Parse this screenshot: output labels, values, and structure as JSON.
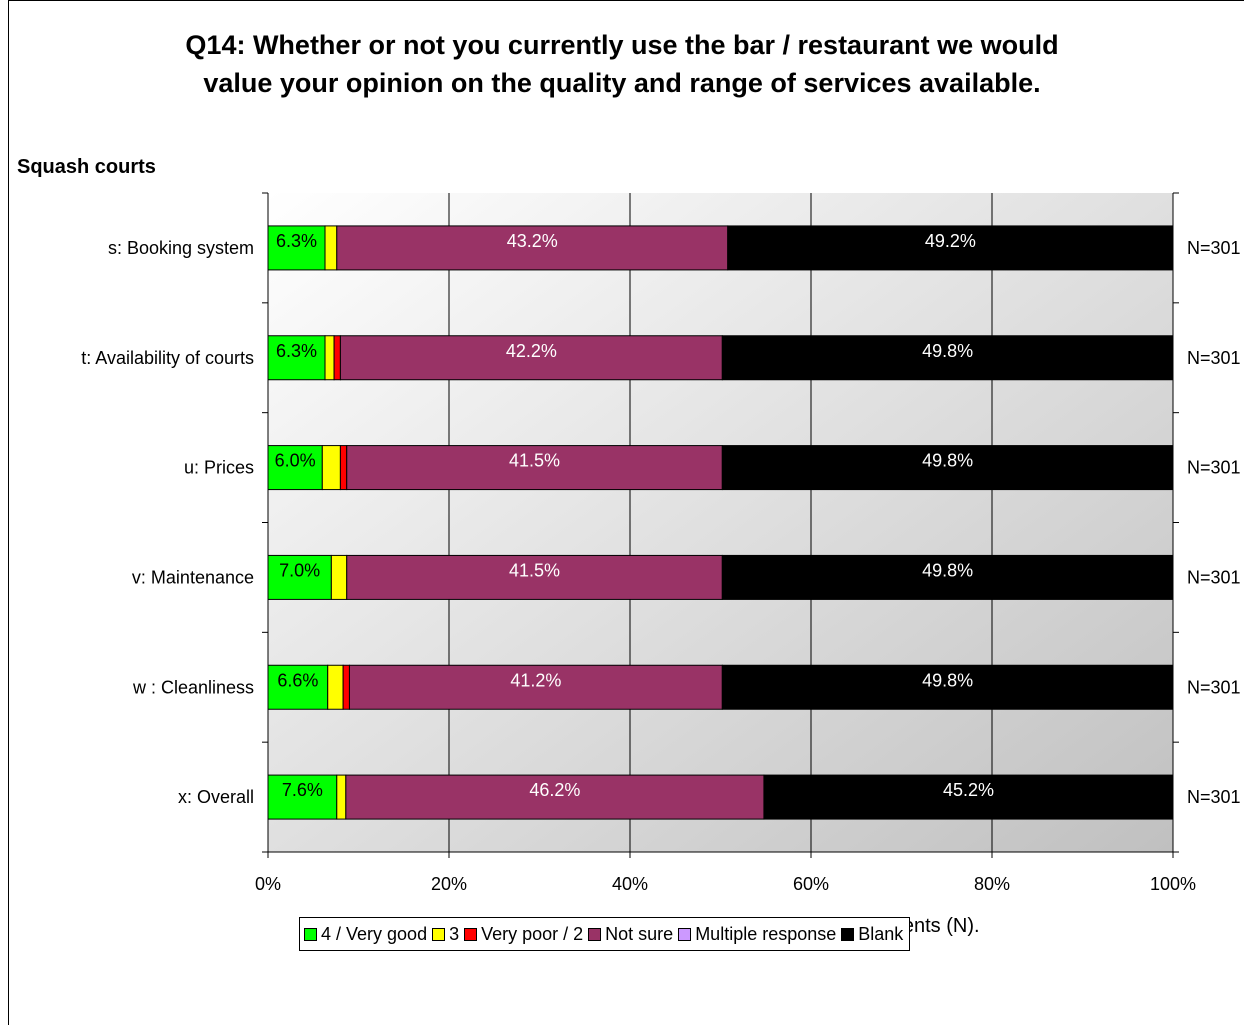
{
  "chart_data": {
    "type": "bar",
    "orientation": "horizontal",
    "stacked": true,
    "title_lines": [
      "Q14: Whether or not you currently use the bar / restaurant we would",
      "value your opinion on the quality and range of services available."
    ],
    "subtitle": "Squash courts",
    "xlabel": "Percentages are based on the number of respondents (N).",
    "xlim": [
      0,
      100
    ],
    "x_ticks": [
      "0%",
      "20%",
      "40%",
      "60%",
      "80%",
      "100%"
    ],
    "grid": true,
    "legend_position": "bottom",
    "categories": [
      "s: Booking system",
      "t: Availability of courts",
      "u: Prices",
      "v: Maintenance",
      "w : Cleanliness",
      "x: Overall"
    ],
    "n_labels": [
      "N=301",
      "N=301",
      "N=301",
      "N=301",
      "N=301",
      "N=301"
    ],
    "series": [
      {
        "name": "4 / Very good",
        "color": "#00ff00",
        "text_color": "#000000",
        "values": [
          6.3,
          6.3,
          6.0,
          7.0,
          6.6,
          7.6
        ],
        "labels": [
          "6.3%",
          "6.3%",
          "6.0%",
          "7.0%",
          "6.6%",
          "7.6%"
        ]
      },
      {
        "name": "3",
        "color": "#ffff00",
        "text_color": "#000000",
        "values": [
          1.3,
          1.0,
          2.0,
          1.7,
          1.7,
          1.0
        ],
        "labels": [
          "",
          "",
          "",
          "",
          "",
          ""
        ]
      },
      {
        "name": "Very poor / 2",
        "color": "#ff0000",
        "text_color": "#000000",
        "values": [
          0,
          0.7,
          0.7,
          0,
          0.7,
          0
        ],
        "labels": [
          "",
          "",
          "",
          "",
          "",
          ""
        ]
      },
      {
        "name": "Not sure",
        "color": "#993366",
        "text_color": "#ffffff",
        "values": [
          43.2,
          42.2,
          41.5,
          41.5,
          41.2,
          46.2
        ],
        "labels": [
          "43.2%",
          "42.2%",
          "41.5%",
          "41.5%",
          "41.2%",
          "46.2%"
        ]
      },
      {
        "name": "Multiple response",
        "color": "#cc99ff",
        "text_color": "#000000",
        "values": [
          0,
          0,
          0,
          0,
          0,
          0
        ],
        "labels": [
          "",
          "",
          "",
          "",
          "",
          ""
        ]
      },
      {
        "name": "Blank",
        "color": "#000000",
        "text_color": "#ffffff",
        "values": [
          49.2,
          49.8,
          49.8,
          49.8,
          49.8,
          45.2
        ],
        "labels": [
          "49.2%",
          "49.8%",
          "49.8%",
          "49.8%",
          "49.8%",
          "45.2%"
        ]
      }
    ]
  }
}
